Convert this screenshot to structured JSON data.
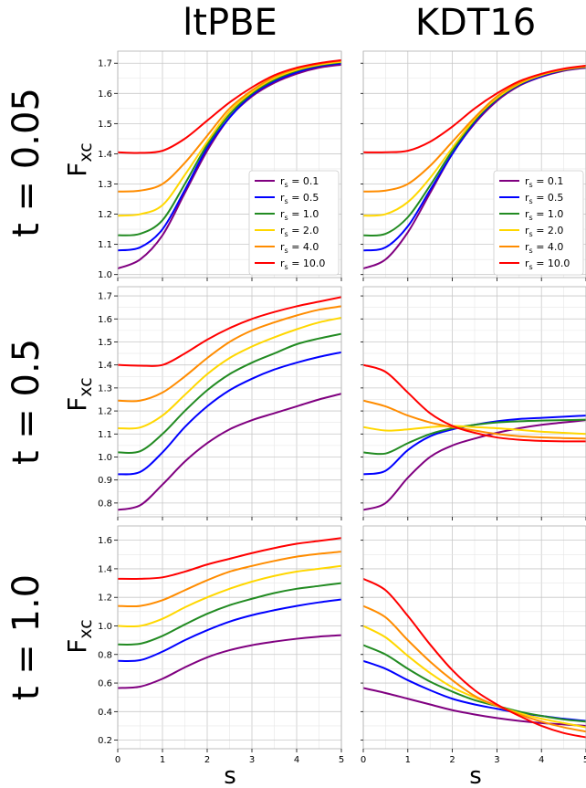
{
  "column_titles": [
    "ltPBE",
    "KDT16"
  ],
  "row_labels": [
    "t = 0.05",
    "t = 0.5",
    "t = 1.0"
  ],
  "ylabel_main": "F",
  "ylabel_sub": "xc",
  "xlabel": "s",
  "series_names": [
    "r_s = 0.1",
    "r_s = 0.5",
    "r_s = 1.0",
    "r_s = 2.0",
    "r_s = 4.0",
    "r_s = 10.0"
  ],
  "legend_labels": [
    {
      "sym": "r",
      "sub": "s",
      "val": " = 0.1"
    },
    {
      "sym": "r",
      "sub": "s",
      "val": " = 0.5"
    },
    {
      "sym": "r",
      "sub": "s",
      "val": " = 1.0"
    },
    {
      "sym": "r",
      "sub": "s",
      "val": " = 2.0"
    },
    {
      "sym": "r",
      "sub": "s",
      "val": " = 4.0"
    },
    {
      "sym": "r",
      "sub": "s",
      "val": " = 10.0"
    }
  ],
  "colors": [
    "#800080",
    "#0000ff",
    "#228b22",
    "#ffd700",
    "#ff8c00",
    "#ff0000"
  ],
  "chart_data": [
    {
      "panel": "ltPBE, t = 0.05",
      "type": "line",
      "x": [
        0,
        0.5,
        1,
        1.5,
        2,
        2.5,
        3,
        3.5,
        4,
        4.5,
        5
      ],
      "xlim": [
        0,
        5
      ],
      "ylim": [
        0.99,
        1.74
      ],
      "yticks": [
        1.0,
        1.1,
        1.2,
        1.3,
        1.4,
        1.5,
        1.6,
        1.7
      ],
      "xticks": [
        0,
        1,
        2,
        3,
        4,
        5
      ],
      "grid": true,
      "legend": "lower-right",
      "series": [
        {
          "name": "r_s = 0.1",
          "values": [
            1.02,
            1.05,
            1.13,
            1.27,
            1.41,
            1.52,
            1.59,
            1.635,
            1.665,
            1.685,
            1.695
          ]
        },
        {
          "name": "r_s = 0.5",
          "values": [
            1.08,
            1.09,
            1.15,
            1.28,
            1.42,
            1.52,
            1.595,
            1.64,
            1.67,
            1.69,
            1.7
          ]
        },
        {
          "name": "r_s = 1.0",
          "values": [
            1.13,
            1.135,
            1.18,
            1.3,
            1.43,
            1.53,
            1.6,
            1.645,
            1.675,
            1.693,
            1.703
          ]
        },
        {
          "name": "r_s = 2.0",
          "values": [
            1.195,
            1.2,
            1.23,
            1.33,
            1.44,
            1.54,
            1.605,
            1.65,
            1.678,
            1.695,
            1.705
          ]
        },
        {
          "name": "r_s = 4.0",
          "values": [
            1.275,
            1.278,
            1.3,
            1.37,
            1.46,
            1.55,
            1.61,
            1.655,
            1.682,
            1.698,
            1.708
          ]
        },
        {
          "name": "r_s = 10.0",
          "values": [
            1.405,
            1.403,
            1.41,
            1.45,
            1.51,
            1.57,
            1.62,
            1.66,
            1.685,
            1.7,
            1.71
          ]
        }
      ]
    },
    {
      "panel": "KDT16, t = 0.05",
      "type": "line",
      "x": [
        0,
        0.5,
        1,
        1.5,
        2,
        2.5,
        3,
        3.5,
        4,
        4.5,
        5
      ],
      "xlim": [
        0,
        5
      ],
      "ylim": [
        0.99,
        1.74
      ],
      "yticks": [
        1.0,
        1.1,
        1.2,
        1.3,
        1.4,
        1.5,
        1.6,
        1.7
      ],
      "xticks": [
        0,
        1,
        2,
        3,
        4,
        5
      ],
      "grid": true,
      "legend": "lower-right",
      "series": [
        {
          "name": "r_s = 0.1",
          "values": [
            1.02,
            1.05,
            1.14,
            1.27,
            1.4,
            1.5,
            1.575,
            1.625,
            1.655,
            1.675,
            1.685
          ]
        },
        {
          "name": "r_s = 0.5",
          "values": [
            1.08,
            1.09,
            1.16,
            1.28,
            1.4,
            1.505,
            1.58,
            1.628,
            1.657,
            1.677,
            1.687
          ]
        },
        {
          "name": "r_s = 1.0",
          "values": [
            1.13,
            1.135,
            1.19,
            1.295,
            1.41,
            1.51,
            1.582,
            1.63,
            1.66,
            1.678,
            1.688
          ]
        },
        {
          "name": "r_s = 2.0",
          "values": [
            1.195,
            1.2,
            1.24,
            1.32,
            1.42,
            1.515,
            1.585,
            1.632,
            1.661,
            1.679,
            1.689
          ]
        },
        {
          "name": "r_s = 4.0",
          "values": [
            1.275,
            1.278,
            1.3,
            1.36,
            1.44,
            1.52,
            1.59,
            1.635,
            1.663,
            1.68,
            1.69
          ]
        },
        {
          "name": "r_s = 10.0",
          "values": [
            1.405,
            1.405,
            1.41,
            1.44,
            1.49,
            1.55,
            1.6,
            1.64,
            1.665,
            1.682,
            1.692
          ]
        }
      ]
    },
    {
      "panel": "ltPBE, t = 0.5",
      "type": "line",
      "x": [
        0,
        0.5,
        1,
        1.5,
        2,
        2.5,
        3,
        3.5,
        4,
        4.5,
        5
      ],
      "xlim": [
        0,
        5
      ],
      "ylim": [
        0.74,
        1.74
      ],
      "yticks": [
        0.8,
        0.9,
        1.0,
        1.1,
        1.2,
        1.3,
        1.4,
        1.5,
        1.6,
        1.7
      ],
      "xticks": [
        0,
        1,
        2,
        3,
        4,
        5
      ],
      "grid": true,
      "series": [
        {
          "name": "r_s = 0.1",
          "values": [
            0.77,
            0.79,
            0.88,
            0.98,
            1.06,
            1.12,
            1.16,
            1.19,
            1.22,
            1.25,
            1.275
          ]
        },
        {
          "name": "r_s = 0.5",
          "values": [
            0.925,
            0.935,
            1.02,
            1.13,
            1.22,
            1.29,
            1.34,
            1.38,
            1.41,
            1.435,
            1.455
          ]
        },
        {
          "name": "r_s = 1.0",
          "values": [
            1.02,
            1.025,
            1.1,
            1.2,
            1.29,
            1.36,
            1.41,
            1.45,
            1.49,
            1.515,
            1.535
          ]
        },
        {
          "name": "r_s = 2.0",
          "values": [
            1.125,
            1.128,
            1.18,
            1.27,
            1.36,
            1.43,
            1.48,
            1.52,
            1.555,
            1.585,
            1.605
          ]
        },
        {
          "name": "r_s = 4.0",
          "values": [
            1.245,
            1.245,
            1.28,
            1.35,
            1.43,
            1.5,
            1.55,
            1.585,
            1.615,
            1.64,
            1.655
          ]
        },
        {
          "name": "r_s = 10.0",
          "values": [
            1.4,
            1.397,
            1.4,
            1.45,
            1.51,
            1.56,
            1.6,
            1.63,
            1.655,
            1.675,
            1.695
          ]
        }
      ]
    },
    {
      "panel": "KDT16, t = 0.5",
      "type": "line",
      "x": [
        0,
        0.5,
        1,
        1.5,
        2,
        2.5,
        3,
        3.5,
        4,
        4.5,
        5
      ],
      "xlim": [
        0,
        5
      ],
      "ylim": [
        0.74,
        1.74
      ],
      "yticks": [
        0.8,
        0.9,
        1.0,
        1.1,
        1.2,
        1.3,
        1.4,
        1.5,
        1.6,
        1.7
      ],
      "xticks": [
        0,
        1,
        2,
        3,
        4,
        5
      ],
      "grid": true,
      "series": [
        {
          "name": "r_s = 0.1",
          "values": [
            0.77,
            0.8,
            0.91,
            1.0,
            1.05,
            1.08,
            1.105,
            1.125,
            1.14,
            1.15,
            1.16
          ]
        },
        {
          "name": "r_s = 0.5",
          "values": [
            0.925,
            0.94,
            1.03,
            1.09,
            1.12,
            1.14,
            1.155,
            1.165,
            1.17,
            1.175,
            1.18
          ]
        },
        {
          "name": "r_s = 1.0",
          "values": [
            1.02,
            1.015,
            1.06,
            1.1,
            1.125,
            1.14,
            1.15,
            1.155,
            1.158,
            1.16,
            1.162
          ]
        },
        {
          "name": "r_s = 2.0",
          "values": [
            1.13,
            1.115,
            1.12,
            1.13,
            1.135,
            1.13,
            1.125,
            1.118,
            1.11,
            1.105,
            1.1
          ]
        },
        {
          "name": "r_s = 4.0",
          "values": [
            1.245,
            1.22,
            1.18,
            1.15,
            1.13,
            1.115,
            1.1,
            1.09,
            1.085,
            1.082,
            1.08
          ]
        },
        {
          "name": "r_s = 10.0",
          "values": [
            1.4,
            1.37,
            1.28,
            1.19,
            1.135,
            1.105,
            1.085,
            1.075,
            1.07,
            1.068,
            1.068
          ]
        }
      ]
    },
    {
      "panel": "ltPBE, t = 1.0",
      "type": "line",
      "x": [
        0,
        0.5,
        1,
        1.5,
        2,
        2.5,
        3,
        3.5,
        4,
        4.5,
        5
      ],
      "xlim": [
        0,
        5
      ],
      "ylim": [
        0.14,
        1.7
      ],
      "yticks": [
        0.2,
        0.4,
        0.6,
        0.8,
        1.0,
        1.2,
        1.4,
        1.6
      ],
      "xticks": [
        0,
        1,
        2,
        3,
        4,
        5
      ],
      "xlabel": "s",
      "grid": true,
      "series": [
        {
          "name": "r_s = 0.1",
          "values": [
            0.565,
            0.575,
            0.63,
            0.71,
            0.78,
            0.83,
            0.865,
            0.89,
            0.91,
            0.925,
            0.935
          ]
        },
        {
          "name": "r_s = 0.5",
          "values": [
            0.755,
            0.76,
            0.82,
            0.9,
            0.97,
            1.03,
            1.075,
            1.11,
            1.14,
            1.165,
            1.185
          ]
        },
        {
          "name": "r_s = 1.0",
          "values": [
            0.87,
            0.875,
            0.93,
            1.01,
            1.085,
            1.145,
            1.19,
            1.23,
            1.26,
            1.28,
            1.3
          ]
        },
        {
          "name": "r_s = 2.0",
          "values": [
            1.0,
            1.0,
            1.05,
            1.13,
            1.2,
            1.26,
            1.31,
            1.35,
            1.38,
            1.4,
            1.42
          ]
        },
        {
          "name": "r_s = 4.0",
          "values": [
            1.14,
            1.14,
            1.18,
            1.25,
            1.32,
            1.38,
            1.42,
            1.455,
            1.485,
            1.505,
            1.52
          ]
        },
        {
          "name": "r_s = 10.0",
          "values": [
            1.33,
            1.33,
            1.34,
            1.38,
            1.43,
            1.47,
            1.51,
            1.545,
            1.575,
            1.595,
            1.615
          ]
        }
      ]
    },
    {
      "panel": "KDT16, t = 1.0",
      "type": "line",
      "x": [
        0,
        0.5,
        1,
        1.5,
        2,
        2.5,
        3,
        3.5,
        4,
        4.5,
        5
      ],
      "xlim": [
        0,
        5
      ],
      "ylim": [
        0.14,
        1.7
      ],
      "yticks": [
        0.2,
        0.4,
        0.6,
        0.8,
        1.0,
        1.2,
        1.4,
        1.6
      ],
      "xticks": [
        0,
        1,
        2,
        3,
        4,
        5
      ],
      "xlabel": "s",
      "grid": true,
      "series": [
        {
          "name": "r_s = 0.1",
          "values": [
            0.565,
            0.53,
            0.49,
            0.45,
            0.41,
            0.38,
            0.355,
            0.335,
            0.32,
            0.31,
            0.3
          ]
        },
        {
          "name": "r_s = 0.5",
          "values": [
            0.755,
            0.7,
            0.62,
            0.55,
            0.49,
            0.45,
            0.42,
            0.39,
            0.37,
            0.35,
            0.335
          ]
        },
        {
          "name": "r_s = 1.0",
          "values": [
            0.865,
            0.8,
            0.7,
            0.61,
            0.54,
            0.48,
            0.44,
            0.4,
            0.37,
            0.345,
            0.33
          ]
        },
        {
          "name": "r_s = 2.0",
          "values": [
            1.0,
            0.92,
            0.79,
            0.67,
            0.57,
            0.5,
            0.44,
            0.39,
            0.35,
            0.32,
            0.29
          ]
        },
        {
          "name": "r_s = 4.0",
          "values": [
            1.14,
            1.06,
            0.9,
            0.75,
            0.62,
            0.51,
            0.44,
            0.38,
            0.33,
            0.29,
            0.26
          ]
        },
        {
          "name": "r_s = 10.0",
          "values": [
            1.33,
            1.25,
            1.07,
            0.87,
            0.69,
            0.55,
            0.45,
            0.37,
            0.3,
            0.25,
            0.22
          ]
        }
      ]
    }
  ]
}
